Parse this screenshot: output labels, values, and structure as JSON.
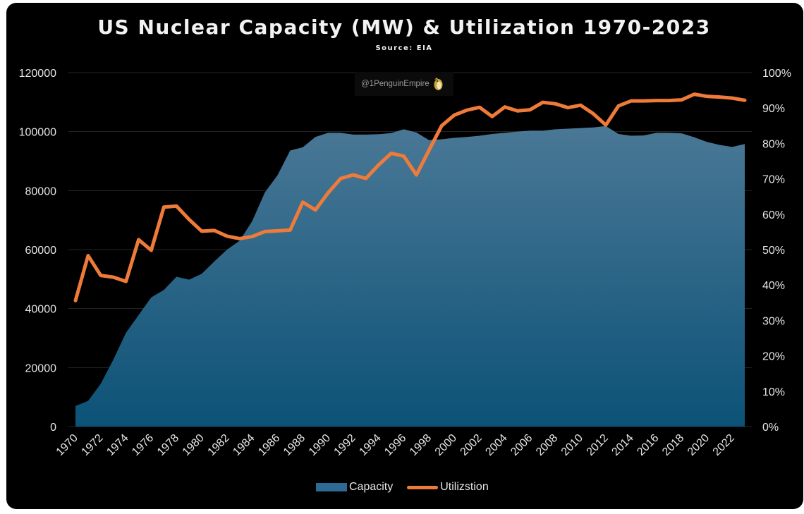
{
  "title": "US Nuclear Capacity (MW) & Utilization 1970-2023",
  "subtitle": "Source: EIA",
  "watermark": {
    "text": "@1PenguinEmpire",
    "icon": "penguin-logo-icon"
  },
  "legend": {
    "capacity_label": "Capacity",
    "utilization_label": "Utilizstion"
  },
  "colors": {
    "background": "#000000",
    "capacity_fill_top": "#4a7896",
    "capacity_fill_bottom": "#0c5277",
    "utilization_line": "#ef7b3a",
    "text": "#e6e6e6",
    "gridline": "#262626"
  },
  "chart_data": {
    "type": "area",
    "title": "US Nuclear Capacity (MW) & Utilization 1970-2023",
    "subtitle": "Source: EIA",
    "x": [
      1970,
      1971,
      1972,
      1973,
      1974,
      1975,
      1976,
      1977,
      1978,
      1979,
      1980,
      1981,
      1982,
      1983,
      1984,
      1985,
      1986,
      1987,
      1988,
      1989,
      1990,
      1991,
      1992,
      1993,
      1994,
      1995,
      1996,
      1997,
      1998,
      1999,
      2000,
      2001,
      2002,
      2003,
      2004,
      2005,
      2006,
      2007,
      2008,
      2009,
      2010,
      2011,
      2012,
      2013,
      2014,
      2015,
      2016,
      2017,
      2018,
      2019,
      2020,
      2021,
      2022,
      2023
    ],
    "x_tick_labels": [
      "1970",
      "1972",
      "1974",
      "1976",
      "1978",
      "1980",
      "1982",
      "1984",
      "1986",
      "1988",
      "1990",
      "1992",
      "1994",
      "1996",
      "1998",
      "2000",
      "2002",
      "2004",
      "2006",
      "2008",
      "2010",
      "2012",
      "2014",
      "2016",
      "2018",
      "2020",
      "2022"
    ],
    "series": [
      {
        "name": "Capacity",
        "type": "area",
        "axis": "left",
        "values": [
          7000,
          8700,
          14500,
          22700,
          31800,
          37800,
          43800,
          46300,
          50800,
          49800,
          51800,
          56000,
          60000,
          63000,
          69700,
          79400,
          85200,
          93600,
          94700,
          98200,
          99600,
          99600,
          99000,
          99000,
          99100,
          99500,
          100800,
          99700,
          97100,
          97400,
          97900,
          98200,
          98600,
          99200,
          99600,
          100000,
          100300,
          100300,
          100800,
          101000,
          101200,
          101400,
          101900,
          99200,
          98600,
          98700,
          99600,
          99600,
          99400,
          98100,
          96500,
          95500,
          94800,
          95800
        ]
      },
      {
        "name": "Utilizstion",
        "type": "line",
        "axis": "right",
        "values": [
          35.6,
          48.3,
          42.7,
          42.2,
          41,
          52.8,
          49.8,
          62,
          62.3,
          58.5,
          55.2,
          55.4,
          53.8,
          53.1,
          53.7,
          55.1,
          55.3,
          55.5,
          63.4,
          61.2,
          66,
          70.1,
          71.1,
          70.1,
          73.9,
          77.2,
          76.4,
          71.1,
          78.1,
          85,
          88,
          89.4,
          90.2,
          87.6,
          90.3,
          89.2,
          89.5,
          91.6,
          91.2,
          90.1,
          90.8,
          88.4,
          85.2,
          90.6,
          92,
          92,
          92.1,
          92.1,
          92.3,
          93.9,
          93.3,
          93.1,
          92.8,
          92.2
        ]
      }
    ],
    "y_left": {
      "min": 0,
      "max": 120000,
      "ticks": [
        "0",
        "20000",
        "40000",
        "60000",
        "80000",
        "100000",
        "120000"
      ]
    },
    "y_right": {
      "min": 0,
      "max": 100,
      "ticks": [
        "0%",
        "10%",
        "20%",
        "30%",
        "40%",
        "50%",
        "60%",
        "70%",
        "80%",
        "90%",
        "100%"
      ]
    },
    "grid": true,
    "legend_position": "bottom"
  }
}
